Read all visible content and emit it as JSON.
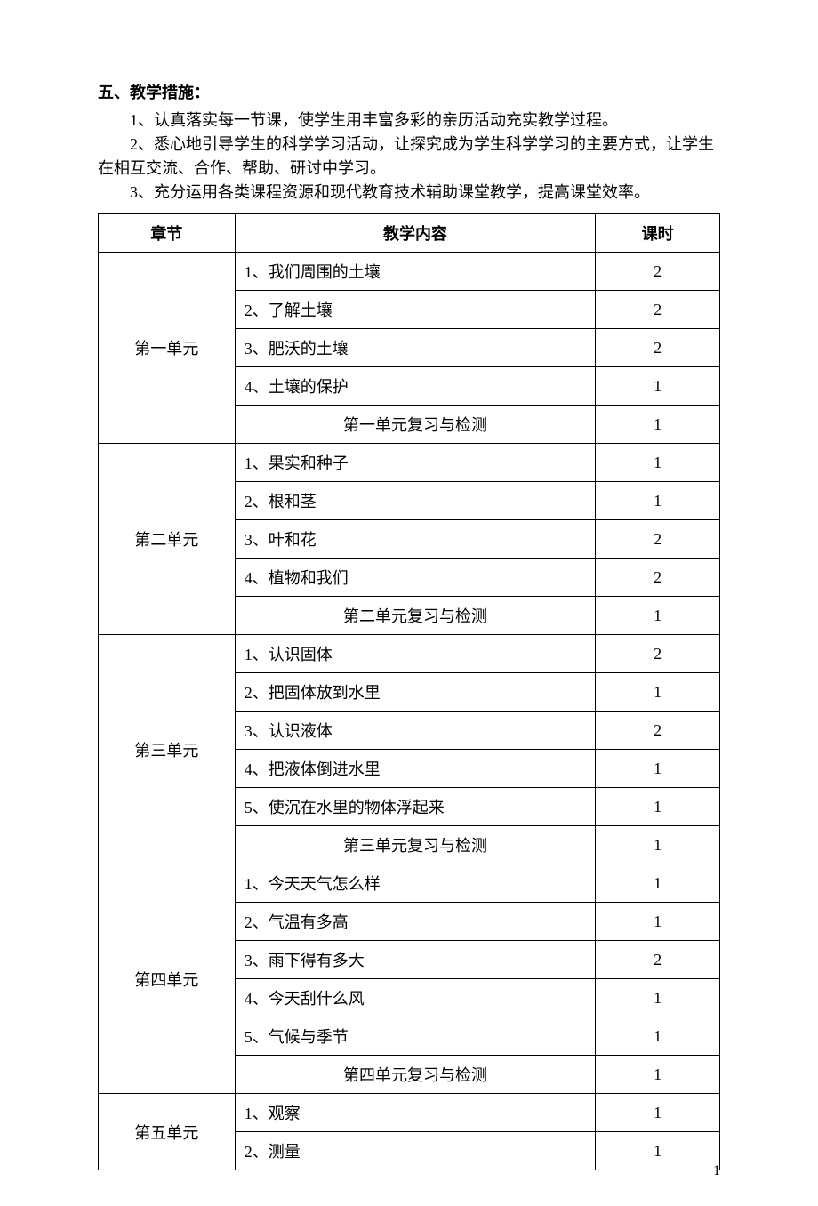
{
  "heading": "五、教学措施：",
  "paragraphs": [
    "1、认真落实每一节课，使学生用丰富多彩的亲历活动充实教学过程。",
    "2、悉心地引导学生的科学学习活动，让探究成为学生科学学习的主要方式，让学生在相互交流、合作、帮助、研讨中学习。",
    "3、充分运用各类课程资源和现代教育技术辅助课堂教学，提高课堂效率。"
  ],
  "table": {
    "headers": {
      "unit": "章节",
      "content": "教学内容",
      "hours": "课时"
    },
    "units": [
      {
        "name": "第一单元",
        "rows": [
          {
            "content": "1、我们周围的土壤",
            "hours": "2",
            "center": false
          },
          {
            "content": "2、了解土壤",
            "hours": "2",
            "center": false
          },
          {
            "content": "3、肥沃的土壤",
            "hours": "2",
            "center": false
          },
          {
            "content": "4、土壤的保护",
            "hours": "1",
            "center": false
          },
          {
            "content": "第一单元复习与检测",
            "hours": "1",
            "center": true
          }
        ]
      },
      {
        "name": "第二单元",
        "rows": [
          {
            "content": "1、果实和种子",
            "hours": "1",
            "center": false
          },
          {
            "content": "2、根和茎",
            "hours": "1",
            "center": false
          },
          {
            "content": "3、叶和花",
            "hours": "2",
            "center": false
          },
          {
            "content": "4、植物和我们",
            "hours": "2",
            "center": false
          },
          {
            "content": "第二单元复习与检测",
            "hours": "1",
            "center": true
          }
        ]
      },
      {
        "name": "第三单元",
        "rows": [
          {
            "content": "1、认识固体",
            "hours": "2",
            "center": false
          },
          {
            "content": "2、把固体放到水里",
            "hours": "1",
            "center": false
          },
          {
            "content": "3、认识液体",
            "hours": "2",
            "center": false
          },
          {
            "content": "4、把液体倒进水里",
            "hours": "1",
            "center": false
          },
          {
            "content": "5、使沉在水里的物体浮起来",
            "hours": "1",
            "center": false
          },
          {
            "content": "第三单元复习与检测",
            "hours": "1",
            "center": true
          }
        ]
      },
      {
        "name": "第四单元",
        "rows": [
          {
            "content": "1、今天天气怎么样",
            "hours": "1",
            "center": false
          },
          {
            "content": "2、气温有多高",
            "hours": "1",
            "center": false
          },
          {
            "content": "3、雨下得有多大",
            "hours": "2",
            "center": false
          },
          {
            "content": "4、今天刮什么风",
            "hours": "1",
            "center": false
          },
          {
            "content": "5、气候与季节",
            "hours": "1",
            "center": false
          },
          {
            "content": "第四单元复习与检测",
            "hours": "1",
            "center": true
          }
        ]
      },
      {
        "name": "第五单元",
        "rows": [
          {
            "content": "1、观察",
            "hours": "1",
            "center": false
          },
          {
            "content": "2、测量",
            "hours": "1",
            "center": false
          }
        ]
      }
    ]
  },
  "pageNumber": "1"
}
